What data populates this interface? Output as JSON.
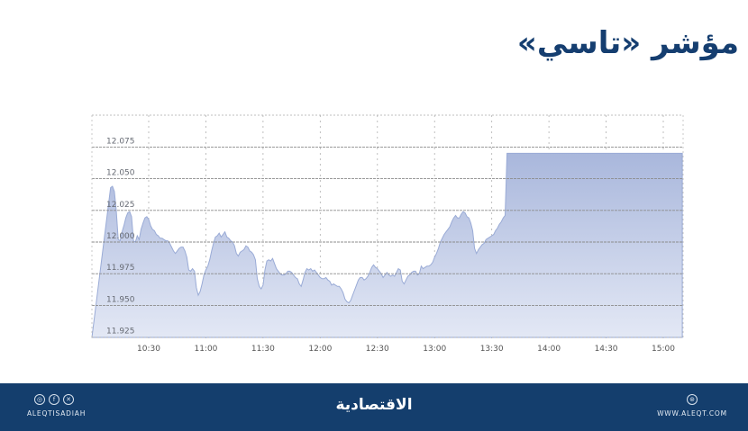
{
  "header": {
    "title": "مؤشر «تاسي»"
  },
  "footer": {
    "social_handle": "ALEQTISADIAH",
    "social_icons": [
      "instagram-icon",
      "facebook-icon",
      "x-icon"
    ],
    "logo_text": "الاقتصادية",
    "website": "WWW.ALEQT.COM",
    "website_icon": "globe-icon"
  },
  "colors": {
    "title": "#153e70",
    "footer_bg": "#143e6d",
    "area_fill_top": "#a9b7dc",
    "area_fill_bottom": "#e3e8f5",
    "area_line": "#9aabd6",
    "grid": "#8a8a8a"
  },
  "chart_data": {
    "type": "area",
    "title": "مؤشر «تاسي»",
    "xlabel": "",
    "ylabel": "",
    "ylim": [
      11.925,
      12.095
    ],
    "y_ticks": [
      "12.075",
      "12.050",
      "12.025",
      "12.000",
      "11.975",
      "11.950",
      "11.925"
    ],
    "y_tick_values": [
      12.075,
      12.05,
      12.025,
      12.0,
      11.975,
      11.95,
      11.925
    ],
    "x_ticks": [
      "10:30",
      "11:00",
      "11:30",
      "12:00",
      "12:30",
      "13:00",
      "13:30",
      "14:00",
      "14:30",
      "15:00"
    ],
    "grid": true,
    "legend": "none",
    "x_range": [
      "10:10",
      "15:10"
    ],
    "series": [
      {
        "name": "TASI",
        "x_minutes_from_1000": [
          10,
          11,
          12,
          13,
          14,
          15,
          16,
          17,
          18,
          19,
          20,
          21,
          22,
          23,
          24,
          25,
          26,
          27,
          28,
          29,
          30,
          31,
          32,
          33,
          34,
          35,
          36,
          37,
          38,
          39,
          40,
          41,
          42,
          43,
          44,
          45,
          46,
          47,
          48,
          49,
          50,
          51,
          52,
          53,
          54,
          55,
          56,
          57,
          58,
          59,
          60,
          61,
          62,
          63,
          64,
          65,
          66,
          67,
          68,
          69,
          70,
          71,
          72,
          73,
          74,
          75,
          76,
          77,
          78,
          79,
          80,
          81,
          82,
          83,
          84,
          85,
          86,
          87,
          88,
          89,
          90,
          91,
          92,
          93,
          94,
          95,
          96,
          97,
          98,
          99,
          100,
          101,
          102,
          103,
          104,
          105,
          106,
          107,
          108,
          109,
          110,
          111,
          112,
          113,
          114,
          115,
          116,
          117,
          118,
          119,
          120,
          121,
          122,
          123,
          124,
          125,
          126,
          127,
          128,
          129,
          130,
          131,
          132,
          133,
          134,
          135,
          136,
          137,
          138,
          139,
          140,
          141,
          142,
          143,
          144,
          145,
          146,
          147,
          148,
          149,
          150,
          151,
          152,
          153,
          154,
          155,
          156,
          157,
          158,
          159,
          160,
          161,
          162,
          163,
          164,
          165,
          166,
          167,
          168,
          169,
          170,
          171,
          172,
          173,
          174,
          175,
          176,
          177,
          178,
          179,
          180,
          181,
          182,
          183,
          184,
          185,
          186,
          187,
          188,
          189,
          190,
          191,
          192,
          193,
          194,
          195,
          196,
          197,
          198,
          199,
          200,
          201,
          202,
          203,
          204,
          205,
          206,
          207,
          208,
          209,
          210,
          211,
          212,
          213,
          214,
          215,
          216,
          217,
          218,
          219,
          220,
          221,
          222,
          223,
          224,
          225,
          226,
          227,
          228,
          229,
          230,
          231,
          232,
          233,
          234,
          235,
          236,
          237,
          238,
          239,
          240,
          241,
          242,
          243,
          244,
          245,
          246,
          247,
          248,
          249,
          250,
          251,
          252,
          253,
          254,
          255,
          256,
          257,
          258,
          259,
          260,
          261,
          262,
          263,
          264,
          265,
          266,
          267,
          268,
          269,
          270,
          271,
          272,
          273,
          274,
          275,
          276,
          277,
          278,
          279,
          280,
          281,
          282,
          283,
          284,
          285,
          286,
          287,
          288,
          289,
          290,
          291,
          292,
          293,
          294,
          295,
          296,
          297,
          298,
          299,
          300,
          301,
          302,
          303,
          304,
          305,
          306,
          307,
          308,
          309,
          310
        ],
        "values": [
          12.043,
          12.044,
          12.04,
          12.025,
          12.002,
          12.001,
          12.008,
          12.013,
          12.019,
          12.023,
          12.024,
          12.02,
          12.001,
          12.0,
          12.005,
          12.002,
          12.01,
          12.015,
          12.019,
          12.02,
          12.018,
          12.013,
          12.01,
          12.009,
          12.006,
          12.005,
          12.003,
          12.003,
          12.002,
          12.001,
          12.001,
          11.999,
          11.996,
          11.993,
          11.991,
          11.993,
          11.995,
          11.996,
          11.996,
          11.993,
          11.988,
          11.978,
          11.977,
          11.979,
          11.977,
          11.964,
          11.958,
          11.961,
          11.967,
          11.974,
          11.978,
          11.981,
          11.986,
          11.993,
          11.999,
          12.004,
          12.005,
          12.007,
          12.004,
          12.006,
          12.008,
          12.004,
          12.003,
          12.001,
          12.0,
          11.997,
          11.991,
          11.989,
          11.992,
          11.993,
          11.994,
          11.997,
          11.996,
          11.993,
          11.992,
          11.99,
          11.986,
          11.971,
          11.965,
          11.963,
          11.966,
          11.978,
          11.985,
          11.986,
          11.985,
          11.987,
          11.983,
          11.979,
          11.977,
          11.975,
          11.974,
          11.974,
          11.975,
          11.977,
          11.977,
          11.976,
          11.974,
          11.972,
          11.971,
          11.967,
          11.965,
          11.97,
          11.976,
          11.979,
          11.978,
          11.979,
          11.977,
          11.978,
          11.976,
          11.974,
          11.972,
          11.971,
          11.971,
          11.972,
          11.97,
          11.969,
          11.966,
          11.967,
          11.966,
          11.965,
          11.965,
          11.963,
          11.96,
          11.955,
          11.953,
          11.952,
          11.954,
          11.958,
          11.962,
          11.966,
          11.97,
          11.972,
          11.972,
          11.97,
          11.971,
          11.973,
          11.976,
          11.98,
          11.982,
          11.98,
          11.979,
          11.977,
          11.975,
          11.972,
          11.974,
          11.976,
          11.974,
          11.973,
          11.974,
          11.973,
          11.976,
          11.979,
          11.978,
          11.969,
          11.967,
          11.97,
          11.973,
          11.974,
          11.976,
          11.977,
          11.977,
          11.974,
          11.975,
          11.981,
          11.979,
          11.98,
          11.981,
          11.981,
          11.982,
          11.984,
          11.988,
          11.991,
          11.995,
          12.0,
          12.003,
          12.006,
          12.008,
          12.01,
          12.012,
          12.016,
          12.019,
          12.021,
          12.019,
          12.019,
          12.022,
          12.024,
          12.023,
          12.02,
          12.019,
          12.015,
          12.009,
          11.995,
          11.991,
          11.994,
          11.996,
          11.998,
          11.999,
          12.002,
          12.003,
          12.004,
          12.005,
          12.006,
          12.009,
          12.011,
          12.014,
          12.016,
          12.019,
          12.021,
          12.07,
          12.07,
          12.07,
          12.07,
          12.07,
          12.07,
          12.07,
          12.07,
          12.07,
          12.07,
          12.07,
          12.07,
          12.07,
          12.07,
          12.07,
          12.07,
          12.07,
          12.07,
          12.07,
          12.07,
          12.07,
          12.07,
          12.07,
          12.07,
          12.07,
          12.07,
          12.07,
          12.07,
          12.07,
          12.07,
          12.07,
          12.07,
          12.07,
          12.07,
          12.07,
          12.07,
          12.07,
          12.07,
          12.07,
          12.07,
          12.07,
          12.07,
          12.07,
          12.07,
          12.07,
          12.07,
          12.07,
          12.07,
          12.07,
          12.07,
          12.07,
          12.07,
          12.07,
          12.07,
          12.07,
          12.07,
          12.07,
          12.07,
          12.07,
          12.07,
          12.07,
          12.07,
          12.07,
          12.07,
          12.07,
          12.07,
          12.07,
          12.07,
          12.07,
          12.07,
          12.07,
          12.07,
          12.07,
          12.07,
          12.07,
          12.07,
          12.07,
          12.07,
          12.07,
          12.07,
          12.07,
          12.07,
          12.07,
          12.07,
          12.07,
          12.07,
          12.07,
          12.07,
          12.07,
          12.07,
          12.07,
          12.07,
          12.07,
          12.07,
          12.07,
          12.07,
          12.07,
          12.07,
          12.07,
          12.07,
          12.07,
          12.07,
          12.07,
          12.07,
          12.07
        ]
      }
    ]
  }
}
